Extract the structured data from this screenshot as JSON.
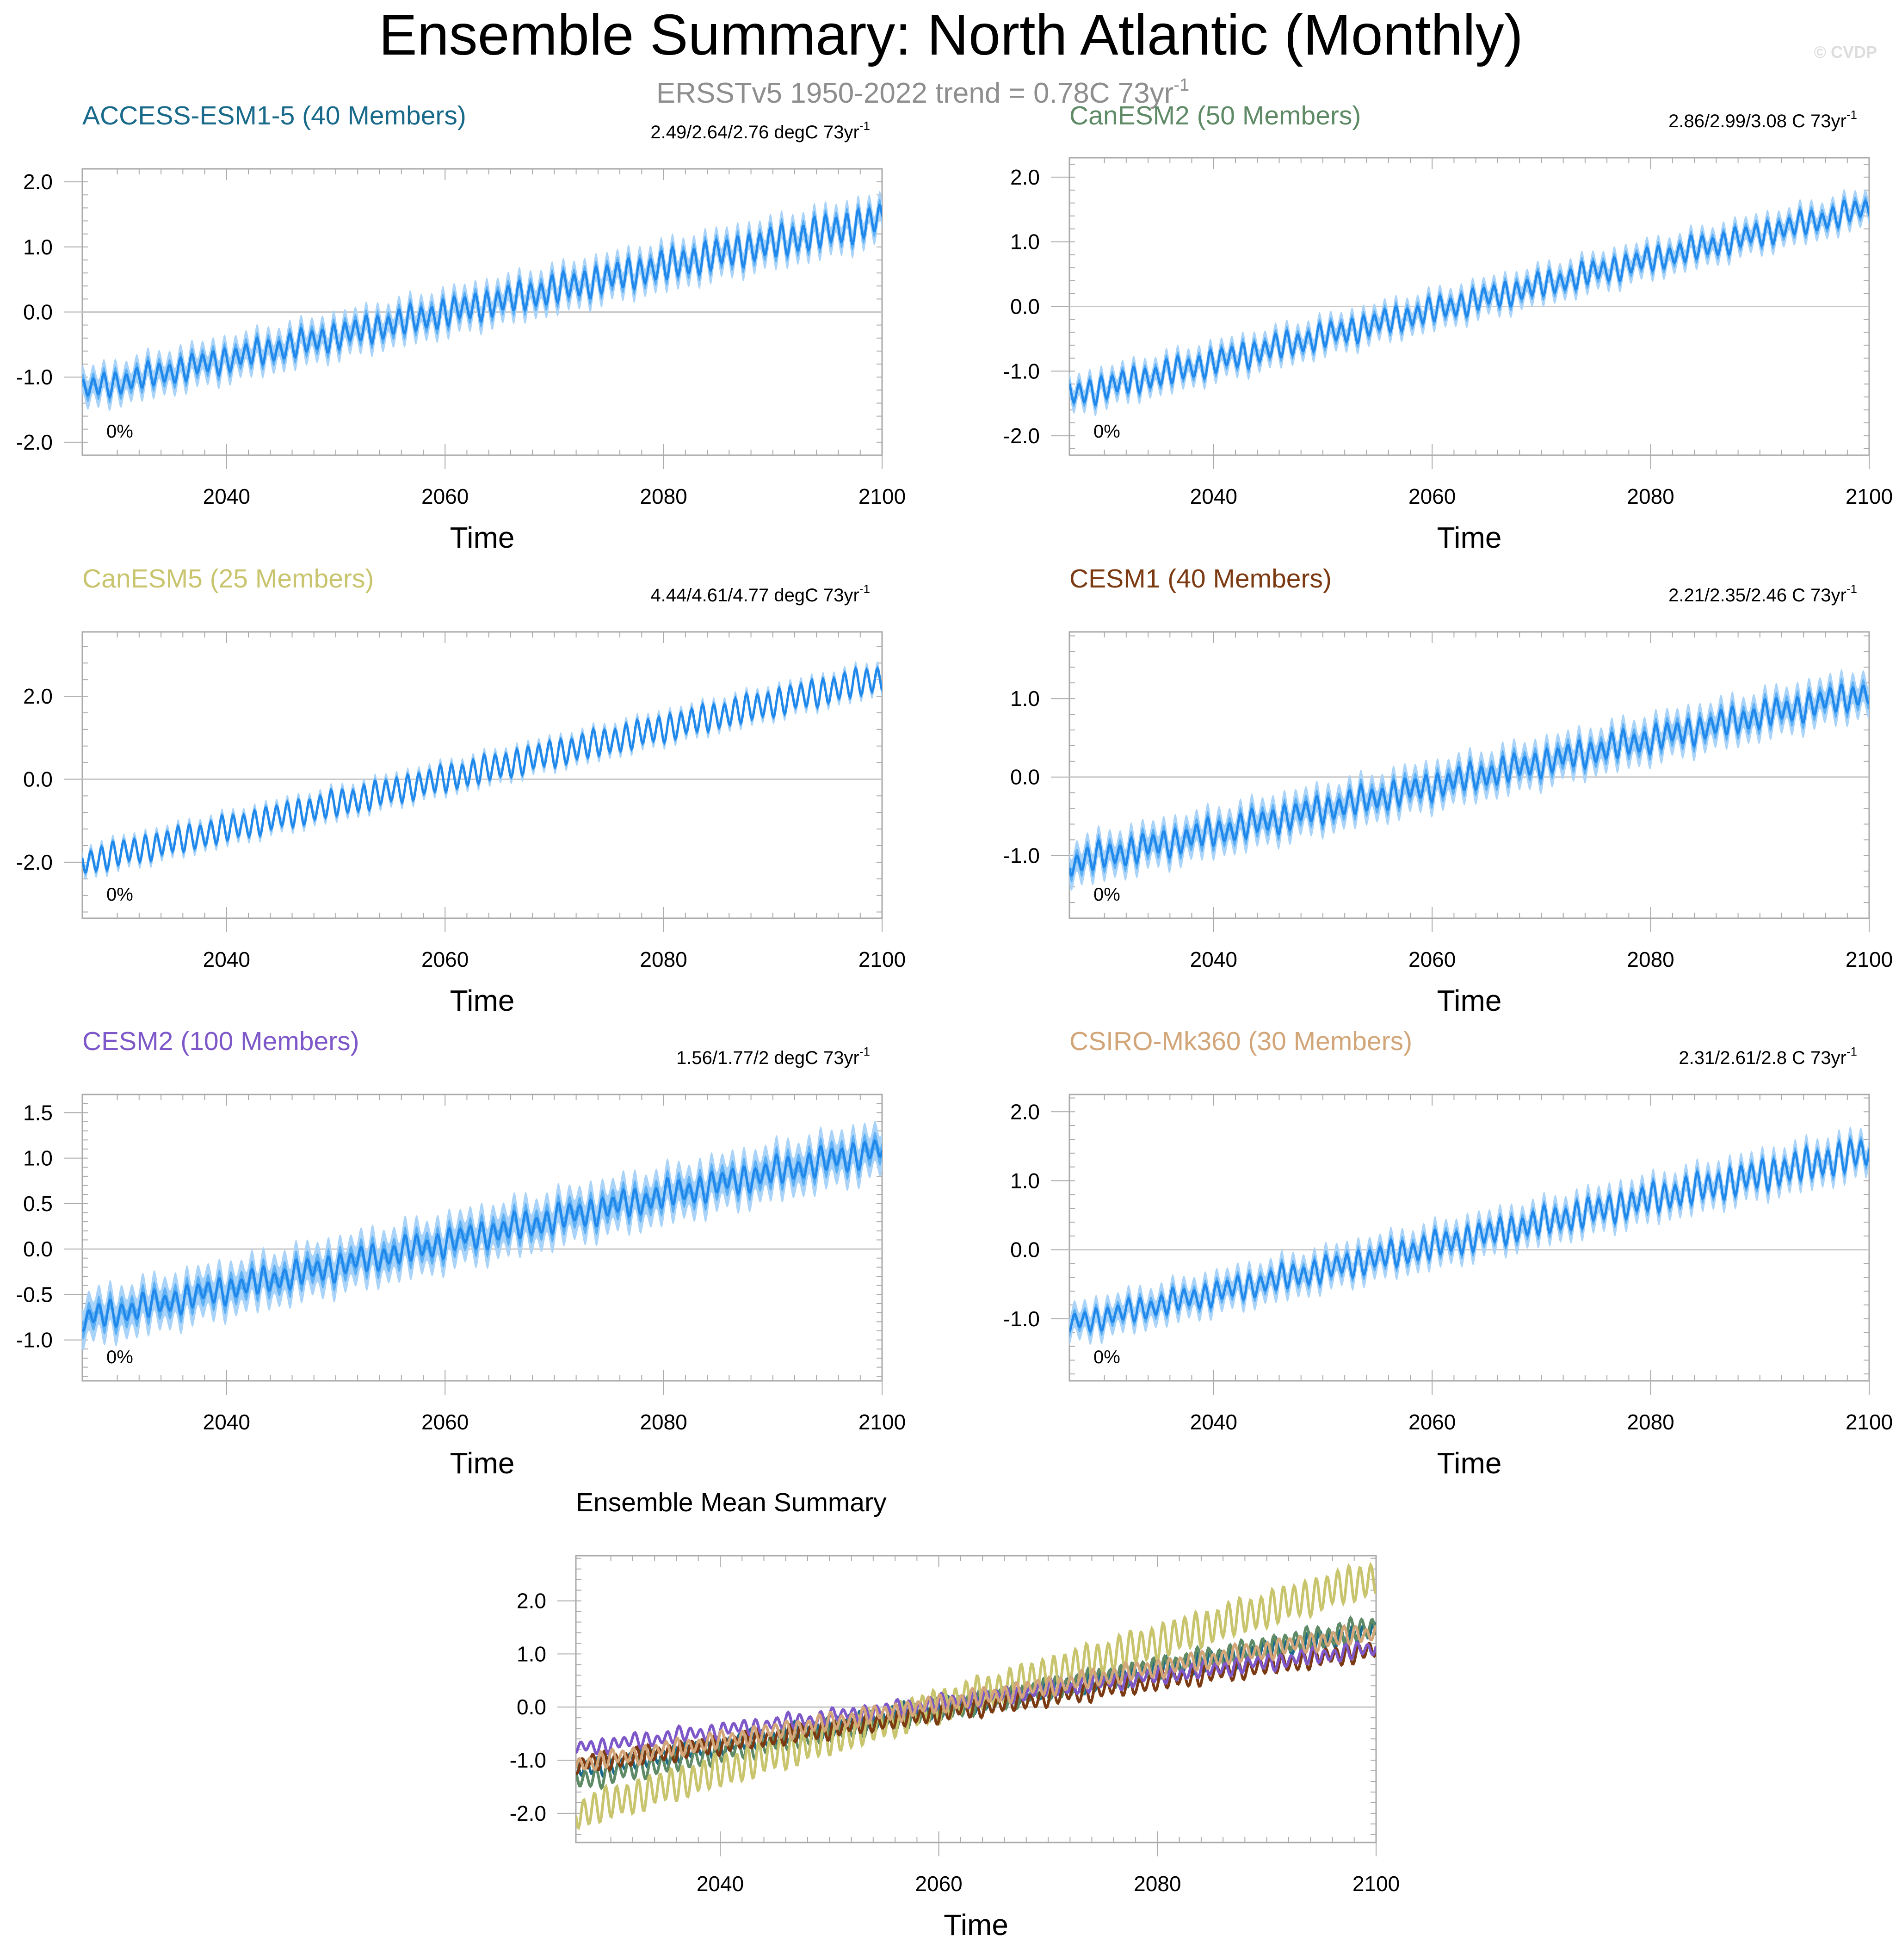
{
  "figure": {
    "title": "Ensemble Summary: North Atlantic (Monthly)",
    "subtitle_main": "ERSSTv5 1950-2022 trend = 0.78C 73yr",
    "subtitle_exp": "-1",
    "watermark": "© CVDP",
    "colors": {
      "band_outer": "#a9d3f8",
      "band_inner": "#5eb0f4",
      "line": "#1f88ea",
      "zero_line": "#c8c8c8",
      "axis": "#aaaaaa"
    }
  },
  "chart_data": [
    {
      "type": "line",
      "model": "ACCESS-ESM1-5",
      "title": "ACCESS-ESM1-5 (40 Members)",
      "title_color": "#196a8a",
      "trend_main": "2.49/2.64/2.76 degC 73yr",
      "trend_exp": "-1",
      "percent_label": "0%",
      "xlabel": "Time",
      "xlim": [
        2026.8,
        2100
      ],
      "xticks": [
        2040,
        2060,
        2080,
        2100
      ],
      "ylim": [
        -2.2,
        2.2
      ],
      "yticks": [
        -2.0,
        -1.0,
        0.0,
        1.0,
        2.0
      ],
      "ytick_labels": [
        "-2.0",
        "-1.0",
        "0.0",
        "1.0",
        "2.0"
      ],
      "mean_start": -1.2,
      "mean_end": 1.42,
      "seasonal_amplitude_start": 0.15,
      "seasonal_amplitude_end": 0.22,
      "spread_inner": 0.1,
      "spread_outer": 0.22
    },
    {
      "type": "line",
      "model": "CanESM2",
      "title": "CanESM2 (50 Members)",
      "title_color": "#5e8a66",
      "trend_main": "2.86/2.99/3.08 C 73yr",
      "trend_exp": "-1",
      "percent_label": "0%",
      "xlabel": "Time",
      "xlim": [
        2026.8,
        2100
      ],
      "xticks": [
        2040,
        2060,
        2080,
        2100
      ],
      "ylim": [
        -2.3,
        2.3
      ],
      "yticks": [
        -2.0,
        -1.0,
        0.0,
        1.0,
        2.0
      ],
      "ytick_labels": [
        "-2.0",
        "-1.0",
        "0.0",
        "1.0",
        "2.0"
      ],
      "mean_start": -1.38,
      "mean_end": 1.52,
      "seasonal_amplitude_start": 0.17,
      "seasonal_amplitude_end": 0.15,
      "spread_inner": 0.08,
      "spread_outer": 0.18
    },
    {
      "type": "line",
      "model": "CanESM5",
      "title": "CanESM5 (25 Members)",
      "title_color": "#c9c46e",
      "trend_main": "4.44/4.61/4.77 degC 73yr",
      "trend_exp": "-1",
      "percent_label": "0%",
      "xlabel": "Time",
      "xlim": [
        2026.8,
        2100
      ],
      "xticks": [
        2040,
        2060,
        2080,
        2100
      ],
      "ylim": [
        -3.35,
        3.55
      ],
      "yticks": [
        -2.0,
        0.0,
        2.0
      ],
      "ytick_labels": [
        "-2.0",
        "0.0",
        "2.0"
      ],
      "mean_start": -2.0,
      "mean_end": 2.45,
      "seasonal_amplitude_start": 0.28,
      "seasonal_amplitude_end": 0.3,
      "spread_inner": 0.08,
      "spread_outer": 0.18
    },
    {
      "type": "line",
      "model": "CESM1",
      "title": "CESM1 (40 Members)",
      "title_color": "#7b3a12",
      "trend_main": "2.21/2.35/2.46 C 73yr",
      "trend_exp": "-1",
      "percent_label": "0%",
      "xlabel": "Time",
      "xlim": [
        2026.8,
        2100
      ],
      "xticks": [
        2040,
        2060,
        2080,
        2100
      ],
      "ylim": [
        -1.8,
        1.85
      ],
      "yticks": [
        -1.0,
        0.0,
        1.0
      ],
      "ytick_labels": [
        "-1.0",
        "0.0",
        "1.0"
      ],
      "mean_start": -1.1,
      "mean_end": 1.08,
      "seasonal_amplitude_start": 0.14,
      "seasonal_amplitude_end": 0.14,
      "spread_inner": 0.09,
      "spread_outer": 0.2
    },
    {
      "type": "line",
      "model": "CESM2",
      "title": "CESM2 (100 Members)",
      "title_color": "#7e57c8",
      "trend_main": "1.56/1.77/2 degC 73yr",
      "trend_exp": "-1",
      "percent_label": "0%",
      "xlabel": "Time",
      "xlim": [
        2026.8,
        2100
      ],
      "xticks": [
        2040,
        2060,
        2080,
        2100
      ],
      "ylim": [
        -1.45,
        1.7
      ],
      "yticks": [
        -1.0,
        -0.5,
        0.0,
        0.5,
        1.0,
        1.5
      ],
      "ytick_labels": [
        "-1.0",
        "-0.5",
        "0.0",
        "0.5",
        "1.0",
        "1.5"
      ],
      "mean_start": -0.78,
      "mean_end": 1.1,
      "seasonal_amplitude_start": 0.11,
      "seasonal_amplitude_end": 0.12,
      "spread_inner": 0.1,
      "spread_outer": 0.22
    },
    {
      "type": "line",
      "model": "CSIRO-Mk360",
      "title": "CSIRO-Mk360 (30 Members)",
      "title_color": "#d2a679",
      "trend_main": "2.31/2.61/2.8 C 73yr",
      "trend_exp": "-1",
      "percent_label": "0%",
      "xlabel": "Time",
      "xlim": [
        2026.8,
        2100
      ],
      "xticks": [
        2040,
        2060,
        2080,
        2100
      ],
      "ylim": [
        -1.9,
        2.25
      ],
      "yticks": [
        -1.0,
        0.0,
        1.0,
        2.0
      ],
      "ytick_labels": [
        "-1.0",
        "0.0",
        "1.0",
        "2.0"
      ],
      "mean_start": -1.08,
      "mean_end": 1.42,
      "seasonal_amplitude_start": 0.13,
      "seasonal_amplitude_end": 0.2,
      "spread_inner": 0.08,
      "spread_outer": 0.2
    },
    {
      "type": "line",
      "model": "Ensemble Mean",
      "title": "Ensemble Mean Summary",
      "xlabel": "Time",
      "xlim": [
        2026.8,
        2100
      ],
      "xticks": [
        2040,
        2060,
        2080,
        2100
      ],
      "ylim": [
        -2.55,
        2.85
      ],
      "yticks": [
        -2.0,
        -1.0,
        0.0,
        1.0,
        2.0
      ],
      "ytick_labels": [
        "-2.0",
        "-1.0",
        "0.0",
        "1.0",
        "2.0"
      ],
      "series": [
        {
          "name": "ACCESS-ESM1-5",
          "color": "#196a8a",
          "start": -1.2,
          "end": 1.42,
          "amplitude": 0.15
        },
        {
          "name": "CanESM2",
          "color": "#5e8a66",
          "start": -1.38,
          "end": 1.52,
          "amplitude": 0.17
        },
        {
          "name": "CanESM5",
          "color": "#c9c46e",
          "start": -2.0,
          "end": 2.45,
          "amplitude": 0.28
        },
        {
          "name": "CESM1",
          "color": "#7b3a12",
          "start": -1.1,
          "end": 1.08,
          "amplitude": 0.14
        },
        {
          "name": "CESM2",
          "color": "#7e57c8",
          "start": -0.78,
          "end": 1.1,
          "amplitude": 0.11
        },
        {
          "name": "CSIRO-Mk360",
          "color": "#d2a679",
          "start": -1.08,
          "end": 1.42,
          "amplitude": 0.13
        }
      ]
    }
  ]
}
